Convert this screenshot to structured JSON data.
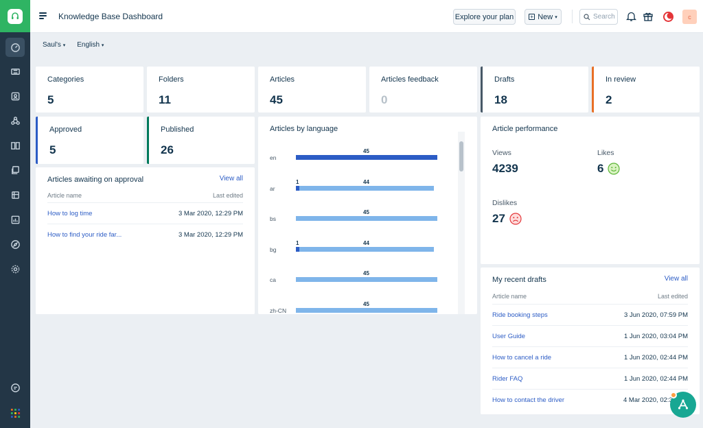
{
  "topbar": {
    "title": "Knowledge Base Dashboard",
    "explore_label": "Explore your plan",
    "new_label": "New",
    "search_placeholder": "Search",
    "avatar_initial": "c"
  },
  "filters": {
    "portal": "Saul's",
    "language": "English"
  },
  "stats": [
    {
      "label": "Categories",
      "value": "5",
      "accent": ""
    },
    {
      "label": "Folders",
      "value": "11",
      "accent": ""
    },
    {
      "label": "Articles",
      "value": "45",
      "accent": ""
    },
    {
      "label": "Articles feedback",
      "value": "0",
      "accent": ""
    },
    {
      "label": "Drafts",
      "value": "18",
      "accent": "#475867"
    },
    {
      "label": "In review",
      "value": "2",
      "accent": "#e86f25"
    },
    {
      "label": "Approved",
      "value": "5",
      "accent": "#2c5cc5"
    },
    {
      "label": "Published",
      "value": "26",
      "accent": "#00795b"
    }
  ],
  "approval": {
    "title": "Articles awaiting on approval",
    "view_all": "View all",
    "col_name": "Article name",
    "col_edited": "Last edited",
    "rows": [
      {
        "name": "How to log time",
        "date": "3 Mar 2020, 12:29 PM"
      },
      {
        "name": "How to find your ride far...",
        "date": "3 Mar 2020, 12:29 PM"
      }
    ]
  },
  "language_chart": {
    "title": "Articles by language",
    "chart_data": {
      "type": "bar",
      "orientation": "horizontal",
      "categories": [
        "en",
        "ar",
        "bs",
        "bg",
        "ca",
        "zh-CN"
      ],
      "series": [
        {
          "values": [
            0,
            1,
            0,
            1,
            0,
            0
          ],
          "color": "#2c5cc5"
        },
        {
          "values": [
            45,
            44,
            45,
            44,
            45,
            45
          ],
          "color": "#7fb5ea"
        }
      ],
      "highlight_first_color": "#2c5cc5",
      "xlim": [
        0,
        45
      ]
    }
  },
  "performance": {
    "title": "Article performance",
    "views_label": "Views",
    "views": "4239",
    "likes_label": "Likes",
    "likes": "6",
    "dislikes_label": "Dislikes",
    "dislikes": "27"
  },
  "drafts": {
    "title": "My recent drafts",
    "view_all": "View all",
    "col_name": "Article name",
    "col_edited": "Last edited",
    "rows": [
      {
        "name": "Ride booking steps",
        "date": "3 Jun 2020, 07:59 PM"
      },
      {
        "name": "User Guide",
        "date": "1 Jun 2020, 03:04 PM"
      },
      {
        "name": "How to cancel a ride",
        "date": "1 Jun 2020, 02:44 PM"
      },
      {
        "name": "Rider FAQ",
        "date": "1 Jun 2020, 02:44 PM"
      },
      {
        "name": "How to contact the driver",
        "date": "4 Mar 2020, 02:35 PM"
      }
    ]
  }
}
